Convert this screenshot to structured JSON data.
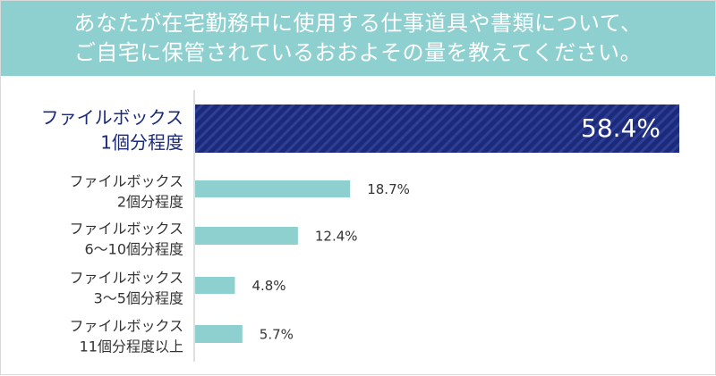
{
  "header": {
    "question_line1": "あなたが在宅勤務中に使用する仕事道具や書類について、",
    "question_line2": "ご自宅に保管されているおおよその量を教えてください。"
  },
  "colors": {
    "header_bg": "#8ecfcf",
    "highlight_bar": "#1b2a7a",
    "highlight_stripe": "#2f3f95",
    "bar": "#8ecfcf",
    "label_text": "#333333",
    "highlight_label": "#1b2a7a"
  },
  "chart_data": {
    "type": "bar",
    "orientation": "horizontal",
    "categories": [
      [
        "ファイルボックス",
        "1個分程度"
      ],
      [
        "ファイルボックス",
        "2個分程度"
      ],
      [
        "ファイルボックス",
        "6～10個分程度"
      ],
      [
        "ファイルボックス",
        "3～5個分程度"
      ],
      [
        "ファイルボックス",
        "11個分程度以上"
      ]
    ],
    "values": [
      58.4,
      18.7,
      12.4,
      4.8,
      5.7
    ],
    "value_labels": [
      "58.4%",
      "18.7%",
      "12.4%",
      "4.8%",
      "5.7%"
    ],
    "highlighted_index": 0,
    "xlim": [
      0,
      58.4
    ],
    "grid": false,
    "legend": "none"
  }
}
